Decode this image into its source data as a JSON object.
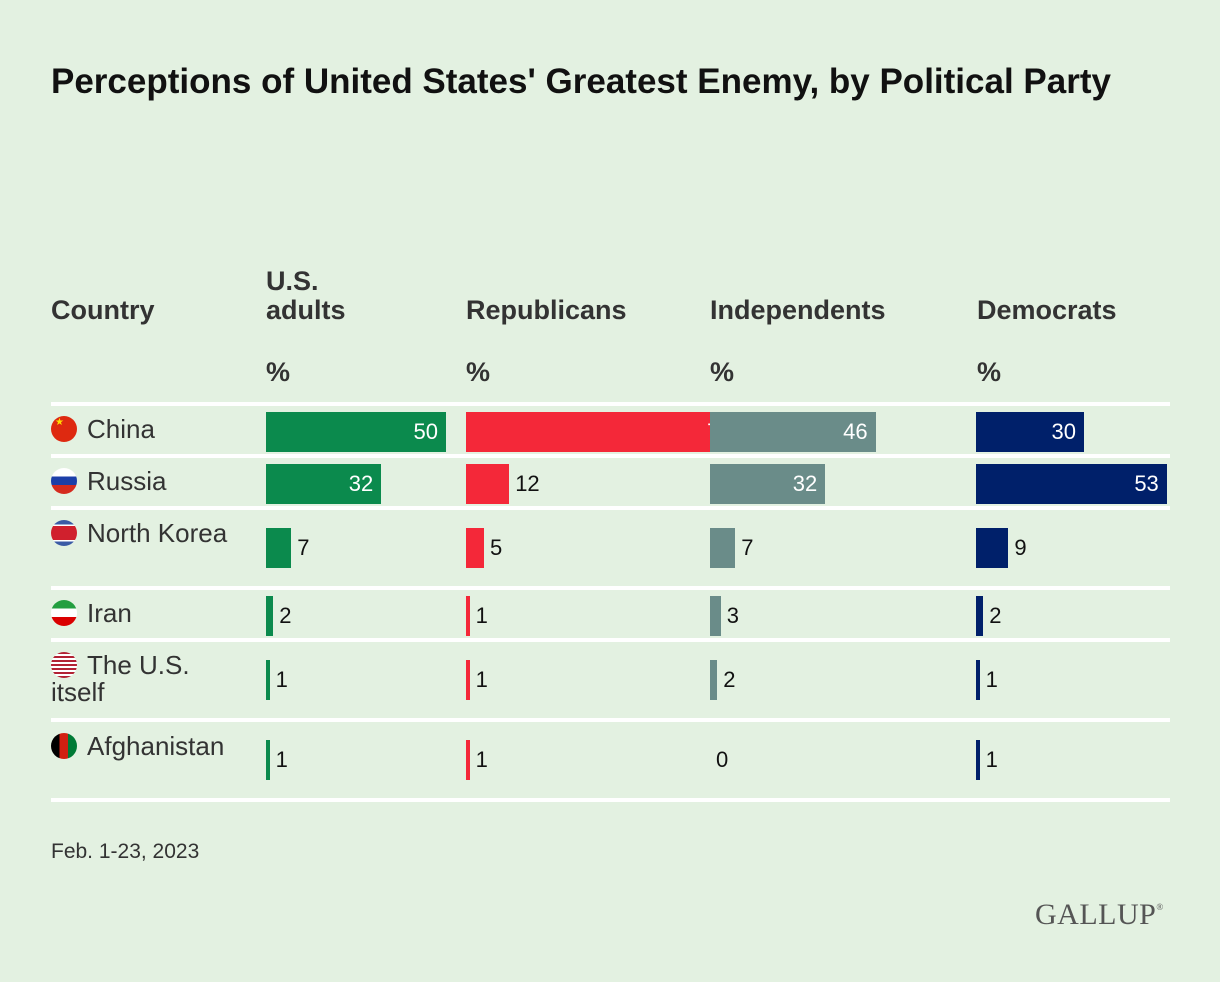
{
  "title": "Perceptions of United States' Greatest Enemy, by Political Party",
  "footer": {
    "date": "Feb. 1-23, 2023",
    "logo": "GALLUP",
    "logo_mark": "®"
  },
  "chart_data": {
    "type": "table",
    "title": "Perceptions of United States' Greatest Enemy, by Political Party",
    "row_header": "Country",
    "unit_label": "%",
    "categories": [
      "China",
      "Russia",
      "North Korea",
      "Iran",
      "The U.S. itself",
      "Afghanistan"
    ],
    "flag_icons": [
      "china-flag-icon",
      "russia-flag-icon",
      "north-korea-flag-icon",
      "iran-flag-icon",
      "us-flag-icon",
      "afghanistan-flag-icon"
    ],
    "series": [
      {
        "name": "U.S. adults",
        "color": "#0b8a4d",
        "values": [
          50,
          32,
          7,
          2,
          1,
          1
        ]
      },
      {
        "name": "Republicans",
        "color": "#f42839",
        "values": [
          76,
          12,
          5,
          1,
          1,
          1
        ]
      },
      {
        "name": "Independents",
        "color": "#6a8c89",
        "values": [
          46,
          32,
          7,
          3,
          2,
          0
        ]
      },
      {
        "name": "Democrats",
        "color": "#00206a",
        "values": [
          30,
          53,
          9,
          2,
          1,
          1
        ]
      }
    ]
  }
}
